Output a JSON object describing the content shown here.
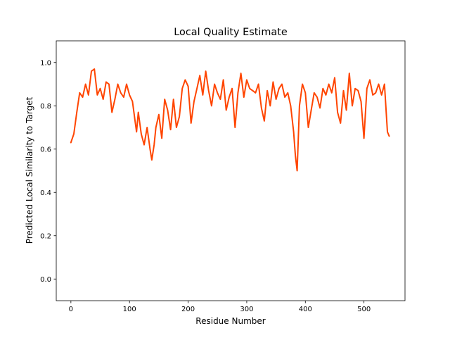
{
  "chart_data": {
    "type": "line",
    "title": "Local Quality Estimate",
    "xlabel": "Residue Number",
    "ylabel": "Predicted Local Similarity to Target",
    "xlim": [
      -25,
      570
    ],
    "ylim": [
      -0.1,
      1.1
    ],
    "xticks": [
      0,
      100,
      200,
      300,
      400,
      500
    ],
    "xtick_labels": [
      "0",
      "100",
      "200",
      "300",
      "400",
      "500"
    ],
    "yticks": [
      0.0,
      0.2,
      0.4,
      0.6,
      0.8,
      1.0
    ],
    "ytick_labels": [
      "0.0",
      "0.2",
      "0.4",
      "0.6",
      "0.8",
      "1.0"
    ],
    "grid": false,
    "legend": "none",
    "series": [
      {
        "color": "#ff4500",
        "x": [
          0,
          5,
          10,
          15,
          20,
          25,
          30,
          35,
          40,
          45,
          50,
          55,
          60,
          65,
          70,
          75,
          80,
          85,
          90,
          95,
          100,
          105,
          110,
          112,
          115,
          120,
          125,
          130,
          135,
          138,
          142,
          145,
          150,
          155,
          160,
          165,
          170,
          175,
          180,
          185,
          190,
          195,
          200,
          205,
          210,
          215,
          220,
          225,
          230,
          235,
          240,
          245,
          250,
          255,
          260,
          265,
          270,
          275,
          280,
          285,
          290,
          295,
          300,
          305,
          310,
          315,
          320,
          325,
          330,
          335,
          340,
          345,
          350,
          355,
          360,
          365,
          370,
          375,
          380,
          383,
          386,
          390,
          395,
          400,
          405,
          410,
          415,
          420,
          425,
          430,
          435,
          440,
          445,
          450,
          455,
          460,
          465,
          470,
          475,
          480,
          485,
          490,
          495,
          500,
          505,
          510,
          515,
          520,
          525,
          530,
          535,
          540,
          543
        ],
        "y": [
          0.63,
          0.67,
          0.77,
          0.86,
          0.84,
          0.9,
          0.85,
          0.96,
          0.97,
          0.85,
          0.88,
          0.83,
          0.91,
          0.9,
          0.77,
          0.83,
          0.9,
          0.86,
          0.84,
          0.9,
          0.85,
          0.82,
          0.72,
          0.68,
          0.77,
          0.67,
          0.62,
          0.7,
          0.6,
          0.55,
          0.62,
          0.7,
          0.76,
          0.65,
          0.83,
          0.78,
          0.69,
          0.83,
          0.7,
          0.75,
          0.88,
          0.92,
          0.89,
          0.72,
          0.82,
          0.88,
          0.94,
          0.85,
          0.96,
          0.87,
          0.8,
          0.9,
          0.86,
          0.83,
          0.92,
          0.78,
          0.84,
          0.88,
          0.7,
          0.86,
          0.95,
          0.84,
          0.92,
          0.88,
          0.87,
          0.86,
          0.9,
          0.79,
          0.73,
          0.87,
          0.8,
          0.91,
          0.83,
          0.88,
          0.9,
          0.84,
          0.86,
          0.8,
          0.68,
          0.57,
          0.5,
          0.8,
          0.9,
          0.86,
          0.7,
          0.78,
          0.86,
          0.84,
          0.79,
          0.88,
          0.85,
          0.9,
          0.86,
          0.93,
          0.77,
          0.72,
          0.87,
          0.78,
          0.95,
          0.8,
          0.88,
          0.87,
          0.82,
          0.65,
          0.88,
          0.92,
          0.85,
          0.86,
          0.9,
          0.85,
          0.9,
          0.68,
          0.66
        ]
      }
    ]
  }
}
